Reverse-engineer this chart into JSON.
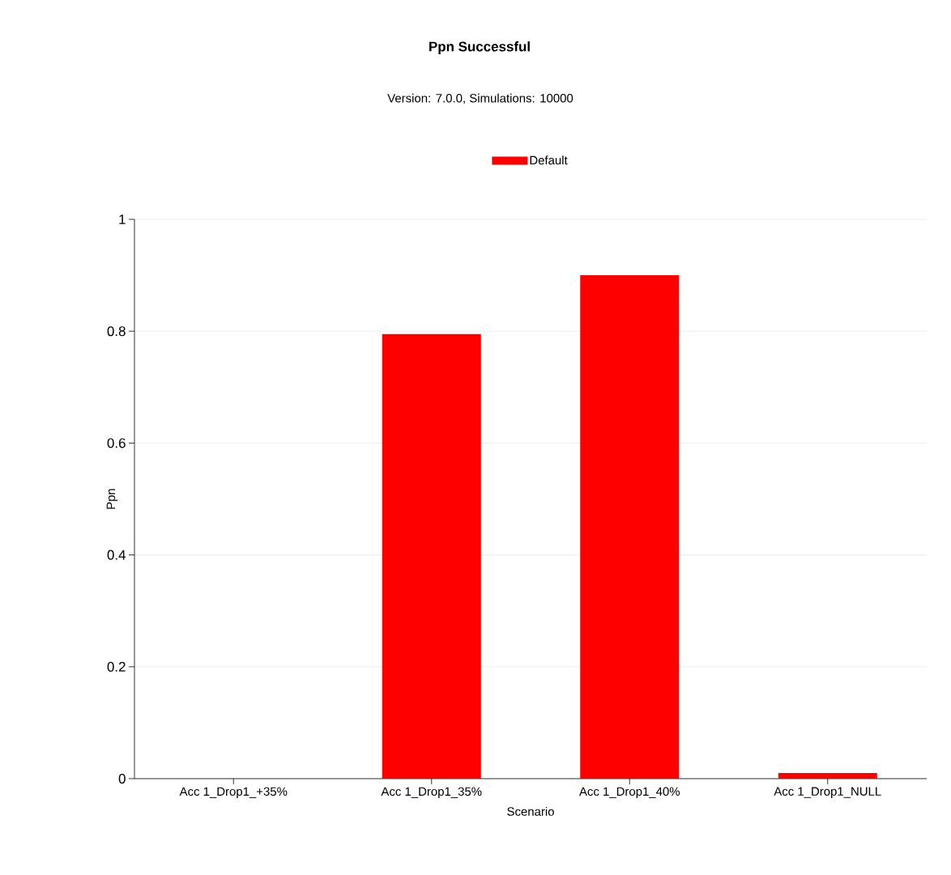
{
  "chart_data": {
    "type": "bar",
    "title": "Ppn Successful",
    "subtitle": "Version: 7.0.0, Simulations: 10000",
    "xlabel": "Scenario",
    "ylabel": "Ppn",
    "categories": [
      "Acc 1_Drop1_+35%",
      "Acc 1_Drop1_35%",
      "Acc 1_Drop1_40%",
      "Acc 1_Drop1_NULL"
    ],
    "series": [
      {
        "name": "Default",
        "color": "#ff0000",
        "values": [
          0,
          0.795,
          0.9,
          0.01
        ]
      }
    ],
    "ylim": [
      0,
      1
    ],
    "yticks": [
      0,
      0.2,
      0.4,
      0.6,
      0.8,
      1
    ],
    "grid": "y",
    "legend": "top"
  }
}
